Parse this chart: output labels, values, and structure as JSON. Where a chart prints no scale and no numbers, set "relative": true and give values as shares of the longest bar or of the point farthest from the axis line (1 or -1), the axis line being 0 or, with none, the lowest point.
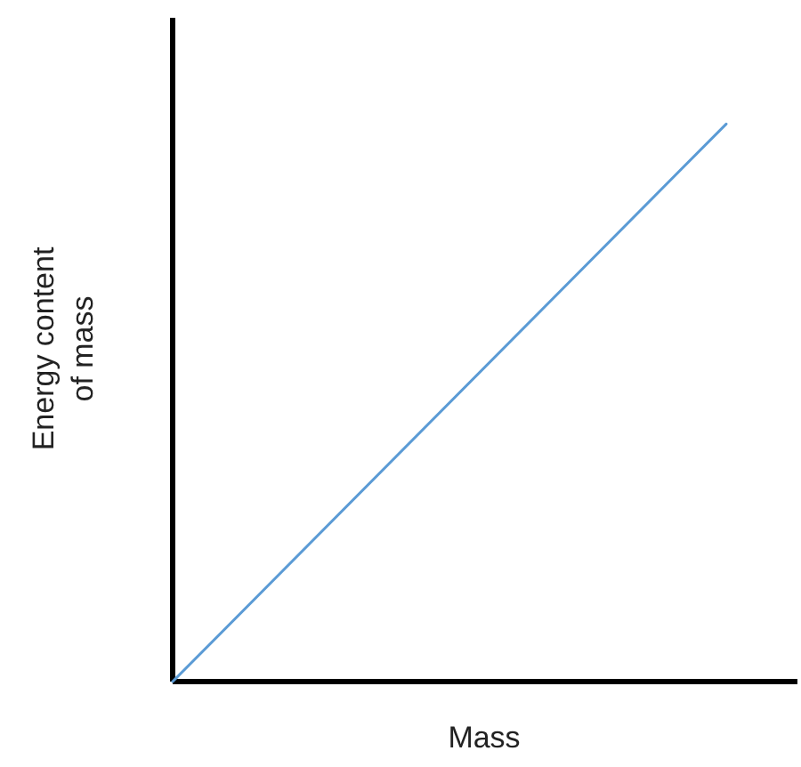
{
  "chart_data": {
    "type": "line",
    "xlabel": "Mass",
    "ylabel": "Energy content of mass",
    "relative": true,
    "categories": [
      null,
      null
    ],
    "ref_lines": [
      {
        "axis": "y",
        "value": 0,
        "color": "#000000"
      }
    ],
    "series": [
      {
        "color": "#5b9bd5",
        "values": [
          0,
          1
        ]
      }
    ]
  }
}
